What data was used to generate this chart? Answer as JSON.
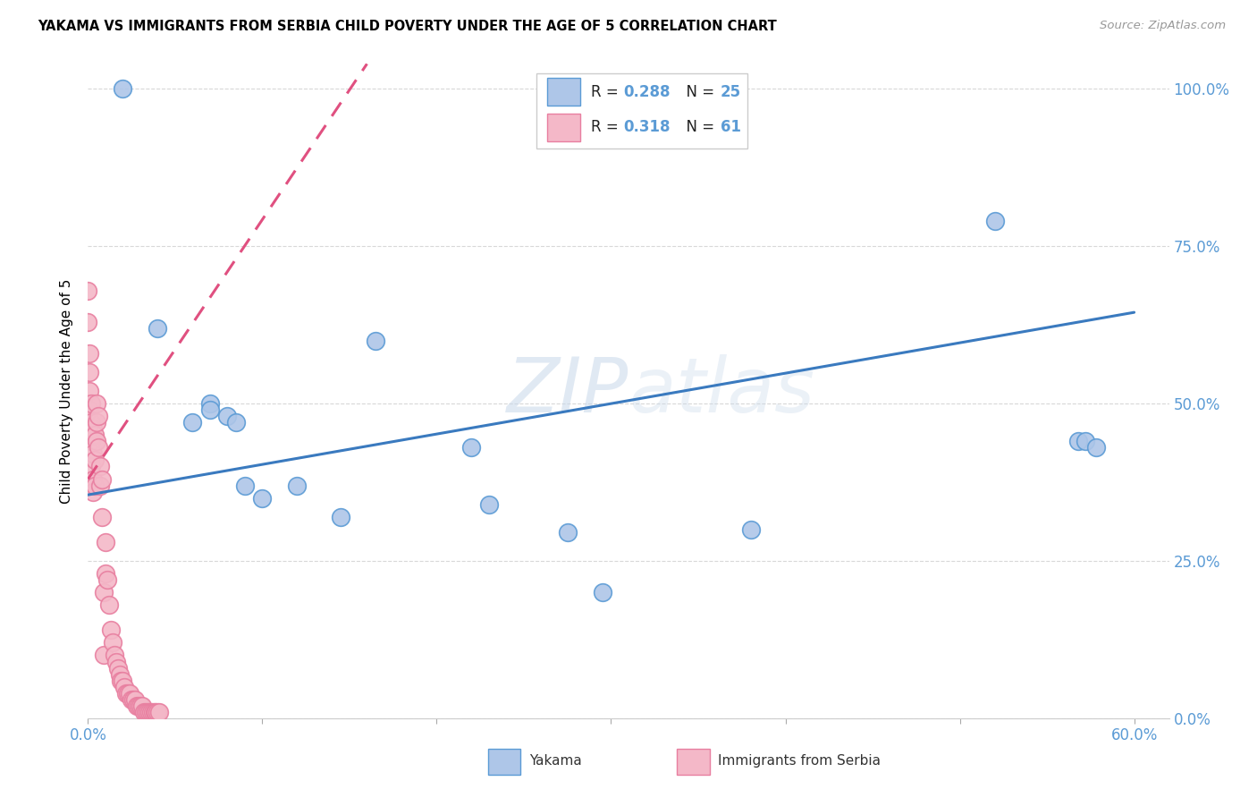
{
  "title": "YAKAMA VS IMMIGRANTS FROM SERBIA CHILD POVERTY UNDER THE AGE OF 5 CORRELATION CHART",
  "source": "Source: ZipAtlas.com",
  "ylabel": "Child Poverty Under the Age of 5",
  "xlim": [
    0.0,
    0.62
  ],
  "ylim": [
    0.0,
    1.04
  ],
  "yakama_color": "#aec6e8",
  "yakama_edge_color": "#5b9bd5",
  "serbia_color": "#f4b8c8",
  "serbia_edge_color": "#e87fa0",
  "trend_yakama_color": "#3a7abf",
  "trend_serbia_color": "#e05080",
  "watermark_color": "#ccddef",
  "legend_box_edge": "#cccccc",
  "background_color": "#ffffff",
  "grid_color": "#d8d8d8",
  "tick_color": "#5b9bd5",
  "yakama_x": [
    0.02,
    0.04,
    0.06,
    0.07,
    0.07,
    0.08,
    0.085,
    0.09,
    0.1,
    0.12,
    0.145,
    0.165,
    0.22,
    0.23,
    0.275,
    0.295,
    0.38,
    0.52,
    0.568,
    0.572,
    0.578
  ],
  "yakama_y": [
    1.0,
    0.62,
    0.47,
    0.5,
    0.49,
    0.48,
    0.47,
    0.37,
    0.35,
    0.37,
    0.32,
    0.6,
    0.43,
    0.34,
    0.295,
    0.2,
    0.3,
    0.79,
    0.44,
    0.44,
    0.43
  ],
  "serbia_x": [
    0.0,
    0.0,
    0.001,
    0.001,
    0.001,
    0.001,
    0.002,
    0.002,
    0.002,
    0.002,
    0.003,
    0.003,
    0.003,
    0.003,
    0.004,
    0.004,
    0.004,
    0.005,
    0.005,
    0.005,
    0.006,
    0.006,
    0.007,
    0.007,
    0.008,
    0.008,
    0.009,
    0.009,
    0.01,
    0.01,
    0.011,
    0.012,
    0.013,
    0.014,
    0.015,
    0.016,
    0.017,
    0.018,
    0.019,
    0.02,
    0.021,
    0.022,
    0.023,
    0.024,
    0.025,
    0.026,
    0.027,
    0.028,
    0.029,
    0.03,
    0.031,
    0.032,
    0.033,
    0.034,
    0.035,
    0.036,
    0.037,
    0.038,
    0.039,
    0.04,
    0.041
  ],
  "serbia_y": [
    0.68,
    0.63,
    0.58,
    0.55,
    0.52,
    0.49,
    0.5,
    0.47,
    0.44,
    0.4,
    0.46,
    0.42,
    0.38,
    0.36,
    0.45,
    0.41,
    0.37,
    0.5,
    0.47,
    0.44,
    0.48,
    0.43,
    0.4,
    0.37,
    0.38,
    0.32,
    0.2,
    0.1,
    0.28,
    0.23,
    0.22,
    0.18,
    0.14,
    0.12,
    0.1,
    0.09,
    0.08,
    0.07,
    0.06,
    0.06,
    0.05,
    0.04,
    0.04,
    0.04,
    0.03,
    0.03,
    0.03,
    0.02,
    0.02,
    0.02,
    0.02,
    0.01,
    0.01,
    0.01,
    0.01,
    0.01,
    0.01,
    0.01,
    0.01,
    0.01,
    0.01
  ],
  "trend_yak_x0": 0.0,
  "trend_yak_y0": 0.355,
  "trend_yak_x1": 0.6,
  "trend_yak_y1": 0.645,
  "trend_ser_x0": 0.0,
  "trend_ser_y0": 0.38,
  "trend_ser_x1": 0.16,
  "trend_ser_y1": 1.04,
  "ytick_positions": [
    0.0,
    0.25,
    0.5,
    0.75,
    1.0
  ],
  "ytick_labels": [
    "0.0%",
    "25.0%",
    "50.0%",
    "75.0%",
    "100.0%"
  ],
  "xtick_positions": [
    0.0,
    0.1,
    0.2,
    0.3,
    0.4,
    0.5,
    0.6
  ],
  "xtick_labels": [
    "0.0%",
    "",
    "",
    "",
    "",
    "",
    "60.0%"
  ]
}
